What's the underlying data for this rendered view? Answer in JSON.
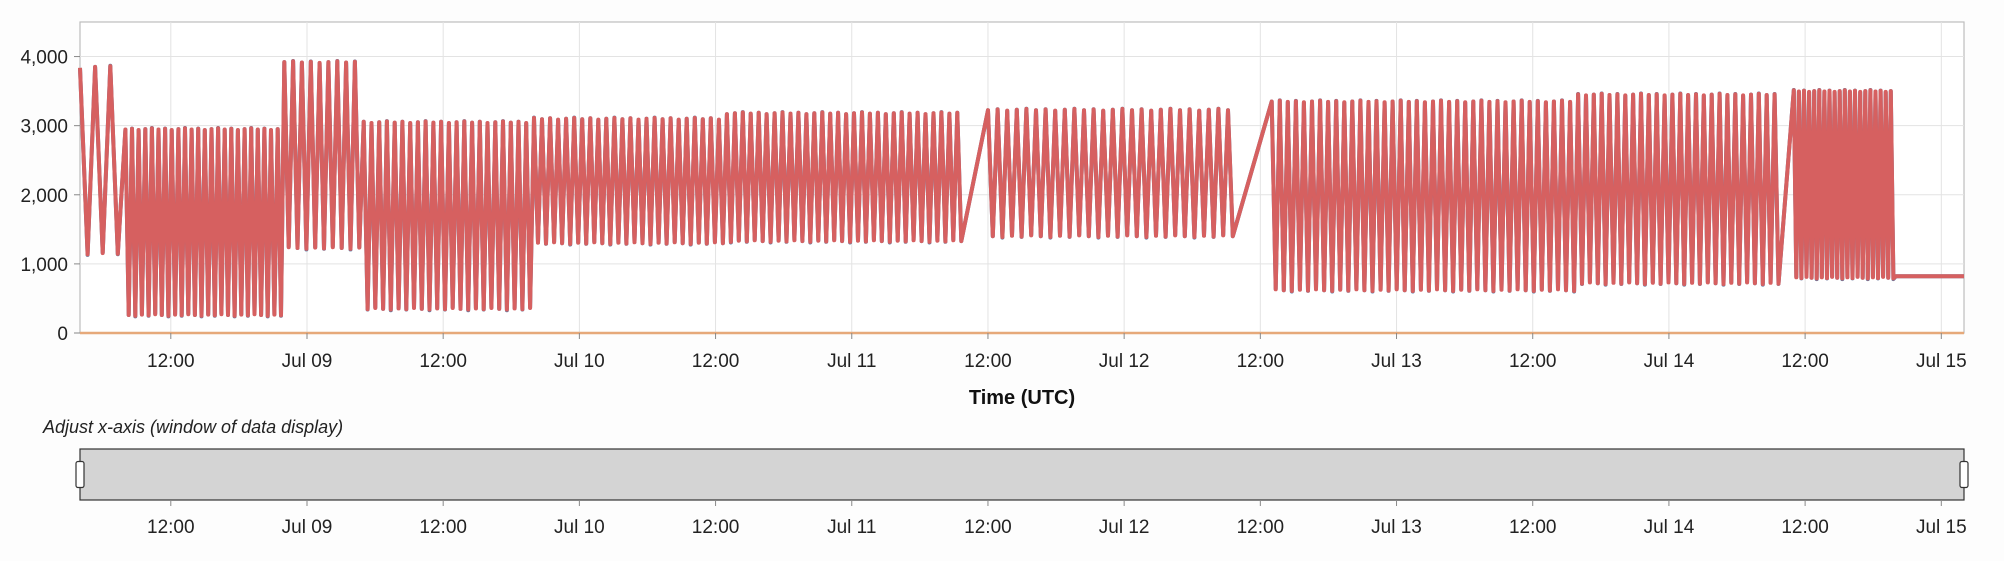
{
  "chart_data": {
    "type": "line",
    "title": "",
    "xlabel": "Time (UTC)",
    "ylabel": "",
    "x_domain": [
      "2023-07-08T04:00:00Z",
      "2023-07-15T02:00:00Z"
    ],
    "ylim": [
      0,
      4500
    ],
    "y_ticks": [
      {
        "value": 0,
        "label": "0"
      },
      {
        "value": 1000,
        "label": "1,000"
      },
      {
        "value": 2000,
        "label": "2,000"
      },
      {
        "value": 3000,
        "label": "3,000"
      },
      {
        "value": 4000,
        "label": "4,000"
      }
    ],
    "x_ticks": [
      {
        "value": "2023-07-08T12:00:00Z",
        "label": "12:00"
      },
      {
        "value": "2023-07-09T00:00:00Z",
        "label": "Jul 09"
      },
      {
        "value": "2023-07-09T12:00:00Z",
        "label": "12:00"
      },
      {
        "value": "2023-07-10T00:00:00Z",
        "label": "Jul 10"
      },
      {
        "value": "2023-07-10T12:00:00Z",
        "label": "12:00"
      },
      {
        "value": "2023-07-11T00:00:00Z",
        "label": "Jul 11"
      },
      {
        "value": "2023-07-11T12:00:00Z",
        "label": "12:00"
      },
      {
        "value": "2023-07-12T00:00:00Z",
        "label": "Jul 12"
      },
      {
        "value": "2023-07-12T12:00:00Z",
        "label": "12:00"
      },
      {
        "value": "2023-07-13T00:00:00Z",
        "label": "Jul 13"
      },
      {
        "value": "2023-07-13T12:00:00Z",
        "label": "12:00"
      },
      {
        "value": "2023-07-14T00:00:00Z",
        "label": "Jul 14"
      },
      {
        "value": "2023-07-14T12:00:00Z",
        "label": "12:00"
      },
      {
        "value": "2023-07-15T00:00:00Z",
        "label": "Jul 15"
      }
    ],
    "grid": true,
    "legend": "none",
    "oscillation_segments": [
      {
        "start": "2023-07-08T04:00:00Z",
        "end": "2023-07-08T08:00:00Z",
        "high": 3850,
        "low": 1150,
        "cycles": 3
      },
      {
        "start": "2023-07-08T08:00:00Z",
        "end": "2023-07-08T22:00:00Z",
        "high": 2950,
        "low": 260,
        "cycles": 24
      },
      {
        "start": "2023-07-08T22:00:00Z",
        "end": "2023-07-09T05:00:00Z",
        "high": 3920,
        "low": 1230,
        "cycles": 9
      },
      {
        "start": "2023-07-09T05:00:00Z",
        "end": "2023-07-09T20:00:00Z",
        "high": 3050,
        "low": 350,
        "cycles": 22
      },
      {
        "start": "2023-07-09T20:00:00Z",
        "end": "2023-07-10T13:00:00Z",
        "high": 3100,
        "low": 1300,
        "cycles": 24
      },
      {
        "start": "2023-07-10T13:00:00Z",
        "end": "2023-07-11T10:00:00Z",
        "high": 3180,
        "low": 1330,
        "cycles": 30
      },
      {
        "start": "2023-07-11T12:00:00Z",
        "end": "2023-07-12T10:00:00Z",
        "high": 3230,
        "low": 1400,
        "cycles": 26
      },
      {
        "start": "2023-07-12T13:00:00Z",
        "end": "2023-07-13T16:00:00Z",
        "high": 3350,
        "low": 620,
        "cycles": 38
      },
      {
        "start": "2023-07-13T16:00:00Z",
        "end": "2023-07-14T10:00:00Z",
        "high": 3450,
        "low": 720,
        "cycles": 26
      },
      {
        "start": "2023-07-14T11:00:00Z",
        "end": "2023-07-14T20:00:00Z",
        "high": 3500,
        "low": 800,
        "cycles": 20
      }
    ],
    "flat_segment": {
      "start": "2023-07-14T20:00:00Z",
      "end": "2023-07-15T02:00:00Z",
      "value": 820
    },
    "baseline_series": {
      "value": 0
    },
    "series_colors": {
      "primary": "#4e79a7",
      "secondary": "#d66060",
      "baseline": "#e6a97a"
    }
  },
  "brush": {
    "caption": "Adjust x-axis (window of data display)",
    "fill": "#d4d4d4"
  }
}
